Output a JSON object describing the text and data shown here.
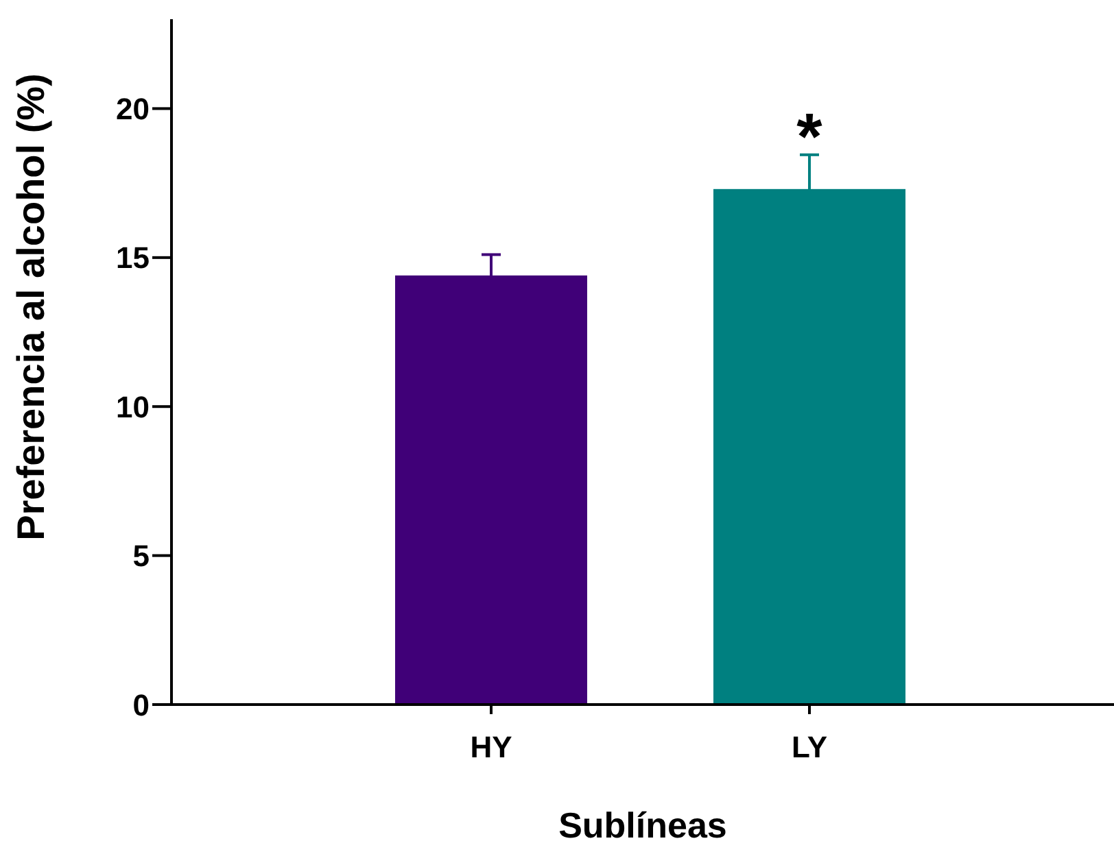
{
  "chart_data": {
    "type": "bar",
    "xlabel": "Sublíneas",
    "ylabel": "Preferencia al alcohol (%)",
    "categories": [
      "HY",
      "LY"
    ],
    "values": [
      14.4,
      17.3
    ],
    "errors": [
      0.7,
      1.15
    ],
    "colors": [
      "#400078",
      "#008080"
    ],
    "ylim": [
      0,
      23
    ],
    "yticks": [
      0,
      5,
      10,
      15,
      20
    ],
    "annotations": [
      {
        "text": "*",
        "x": "LY",
        "y": 18.45
      }
    ]
  }
}
